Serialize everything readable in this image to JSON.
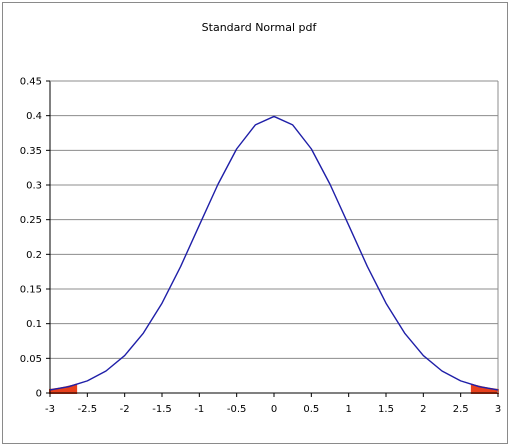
{
  "chart_data": {
    "type": "line",
    "title": "Standard Normal pdf",
    "xlabel": "",
    "ylabel": "",
    "xlim": [
      -3,
      3
    ],
    "ylim": [
      0,
      0.45
    ],
    "x_ticks": [
      "-3",
      "-2.5",
      "-2",
      "-1.5",
      "-1",
      "-0.5",
      "0",
      "0.5",
      "1",
      "1.5",
      "2",
      "2.5",
      "3"
    ],
    "y_ticks": [
      "0",
      "0.05",
      "0.1",
      "0.15",
      "0.2",
      "0.25",
      "0.3",
      "0.35",
      "0.4",
      "0.45"
    ],
    "grid": {
      "horizontal": true,
      "vertical": false
    },
    "legend": "none",
    "series": [
      {
        "x": [
          -3,
          -2.75,
          -2.5,
          -2.25,
          -2,
          -1.75,
          -1.5,
          -1.25,
          -1,
          -0.75,
          -0.5,
          -0.25,
          0,
          0.25,
          0.5,
          0.75,
          1,
          1.25,
          1.5,
          1.75,
          2,
          2.25,
          2.5,
          2.75,
          3
        ],
        "y": [
          0.0044,
          0.0091,
          0.0175,
          0.0317,
          0.054,
          0.0863,
          0.1295,
          0.1826,
          0.242,
          0.3011,
          0.3521,
          0.3867,
          0.3989,
          0.3867,
          0.3521,
          0.3011,
          0.242,
          0.1826,
          0.1295,
          0.0863,
          0.054,
          0.0317,
          0.0175,
          0.0091,
          0.0044
        ],
        "color": "#1f1fa8"
      }
    ],
    "shaded_tails": {
      "color": "#e8401c",
      "ranges": [
        [
          -3,
          -2.65
        ],
        [
          2.65,
          3
        ]
      ]
    }
  }
}
